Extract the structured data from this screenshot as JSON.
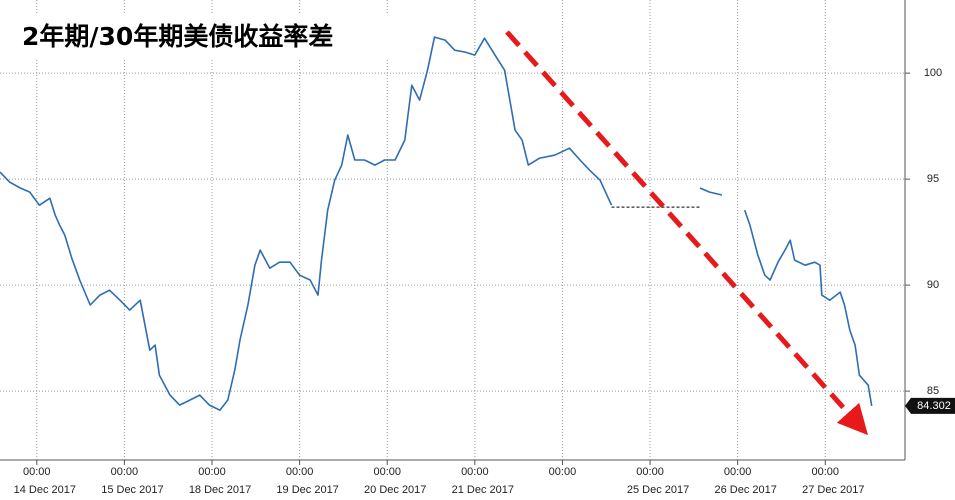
{
  "chart_data": {
    "type": "line",
    "title": "2年期/30年期美债收益率差",
    "xlim": [
      -0.42,
      9.91
    ],
    "ylim": [
      81.75,
      103.45
    ],
    "xticks": [
      {
        "value": 0,
        "label": "00:00"
      },
      {
        "value": 1,
        "label": "00:00"
      },
      {
        "value": 2,
        "label": "00:00"
      },
      {
        "value": 3,
        "label": "00:00"
      },
      {
        "value": 4,
        "label": "00:00"
      },
      {
        "value": 5,
        "label": "00:00"
      },
      {
        "value": 6,
        "label": "00:00"
      },
      {
        "value": 7,
        "label": "00:00"
      },
      {
        "value": 8,
        "label": "00:00"
      },
      {
        "value": 9,
        "label": "00:00"
      }
    ],
    "xtick_dates": [
      "14 Dec 2017",
      "15 Dec 2017",
      "18 Dec 2017",
      "19 Dec 2017",
      "20 Dec 2017",
      "21 Dec 2017",
      null,
      "25 Dec 2017",
      "26 Dec 2017",
      "27 Dec 2017"
    ],
    "yticks": [
      85,
      90,
      95,
      100
    ],
    "grid": true,
    "series": [
      {
        "color": "#2d6db5",
        "x": [
          -0.42,
          -0.31,
          -0.19,
          -0.08,
          0.03,
          0.15,
          0.21,
          0.26,
          0.32,
          0.4,
          0.49,
          0.61,
          0.72,
          0.83,
          0.95,
          1.06,
          1.18,
          1.29,
          1.35,
          1.4,
          1.52,
          1.63,
          1.75,
          1.86,
          1.97,
          2.09,
          2.18,
          2.26,
          2.32,
          2.41,
          2.49,
          2.55,
          2.66,
          2.77,
          2.89,
          3.0,
          3.12,
          3.21,
          3.25,
          3.32,
          3.4,
          3.48,
          3.55,
          3.63,
          3.74,
          3.86,
          3.97,
          4.09,
          4.2,
          4.28,
          4.37,
          4.46,
          4.54,
          4.66,
          4.77,
          4.89,
          5.0,
          5.11,
          5.23,
          5.34,
          5.46,
          5.54,
          5.61,
          5.74,
          5.91,
          6.08,
          6.2,
          6.31,
          6.43,
          6.56,
          7.0,
          7.57,
          7.68,
          7.82,
          7.95,
          8.08,
          8.14,
          8.23,
          8.31,
          8.37,
          8.46,
          8.54,
          8.6,
          8.65,
          8.77,
          8.88,
          8.94,
          8.96,
          9.05,
          9.17,
          9.22,
          9.28,
          9.34,
          9.39,
          9.49,
          9.53
        ],
        "values": [
          95.33,
          94.86,
          94.58,
          94.39,
          93.77,
          94.1,
          93.3,
          92.83,
          92.36,
          91.27,
          90.24,
          89.06,
          89.53,
          89.76,
          89.29,
          88.82,
          89.29,
          86.93,
          87.17,
          85.75,
          84.81,
          84.34,
          84.58,
          84.81,
          84.34,
          84.1,
          84.58,
          85.99,
          87.41,
          89.06,
          90.94,
          91.65,
          90.8,
          91.08,
          91.08,
          90.47,
          90.24,
          89.53,
          91.18,
          93.54,
          94.95,
          95.66,
          97.08,
          95.9,
          95.9,
          95.66,
          95.9,
          95.9,
          96.84,
          99.43,
          98.73,
          100.14,
          101.7,
          101.56,
          101.08,
          100.99,
          100.85,
          101.65,
          100.85,
          100.14,
          97.31,
          96.84,
          95.66,
          95.99,
          96.13,
          96.46,
          95.9,
          95.42,
          94.95,
          93.77,
          null,
          94.58,
          94.39,
          94.25,
          null,
          93.54,
          92.83,
          91.42,
          90.47,
          90.24,
          91.08,
          91.65,
          92.12,
          91.18,
          90.94,
          91.08,
          90.94,
          89.53,
          89.29,
          89.67,
          89.06,
          87.88,
          87.17,
          85.75,
          85.28,
          84.302
        ]
      },
      {
        "color": "#000000",
        "dash": true,
        "x": [
          6.56,
          7.57
        ],
        "values": [
          93.68,
          93.68
        ]
      }
    ]
  }
}
